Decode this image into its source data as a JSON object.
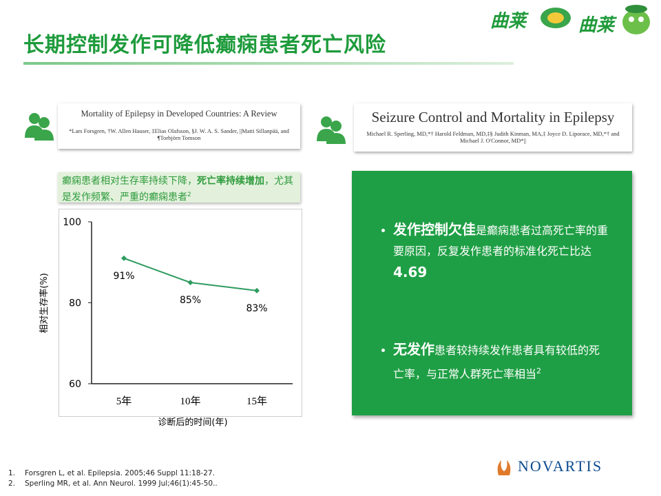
{
  "header": {
    "title": "长期控制发作可降低癫痫患者死亡风险",
    "logo_1": "曲莱",
    "logo_2": "曲莱"
  },
  "paper_1": {
    "title": "Mortality of Epilepsy in Developed Countries: A Review",
    "authors": "*Lars Forsgren, †W. Allen Hauser, ‡Elias Olafsson, §J. W. A. S. Sander, ||Matti Sillanpää, and ¶Torbjörn Tomson"
  },
  "paper_2": {
    "title": "Seizure Control and Mortality in Epilepsy",
    "authors": "Michael R. Sperling, MD,*† Harold Feldman, MD,‡§ Judith Kinman, MA,‡ Joyce D. Liporace, MD,*† and Michael J. O'Connor, MD*||"
  },
  "caption": {
    "text_1": "癫痫患者相对生存率持续下降，",
    "bold": "死亡率持续增加",
    "text_2": "，尤其是发作频繁、严重的癫痫患者",
    "sup": "2"
  },
  "chart_data": {
    "type": "line",
    "ylabel": "相对生存率(%)",
    "xlabel": "诊断后的时间(年)",
    "categories": [
      "5年",
      "10年",
      "15年"
    ],
    "values": [
      91,
      85,
      83
    ],
    "value_labels": [
      "91%",
      "85%",
      "83%"
    ],
    "color": "#2e9b5f",
    "ylim": [
      60,
      100
    ],
    "yticks": [
      60,
      80,
      100
    ],
    "grid": false
  },
  "bullets": [
    {
      "bold": "发作控制欠佳",
      "text": "是癫痫患者过高死亡率的重要原因，反复发作患者的标准化死亡比达",
      "value": "4.69"
    },
    {
      "bold": "无发作",
      "text": "患者较持续发作患者具有较低的死亡率，与正常人群死亡率相当",
      "sup": "2"
    }
  ],
  "references": [
    {
      "num": "1.",
      "text": "Forsgren L, et al. Epilepsia. 2005;46 Suppl 11:18-27."
    },
    {
      "num": "2.",
      "text": "Sperling MR, et al. Ann Neurol. 1999 Jul;46(1):45-50.."
    }
  ],
  "footer": {
    "brand": "NOVARTIS"
  }
}
